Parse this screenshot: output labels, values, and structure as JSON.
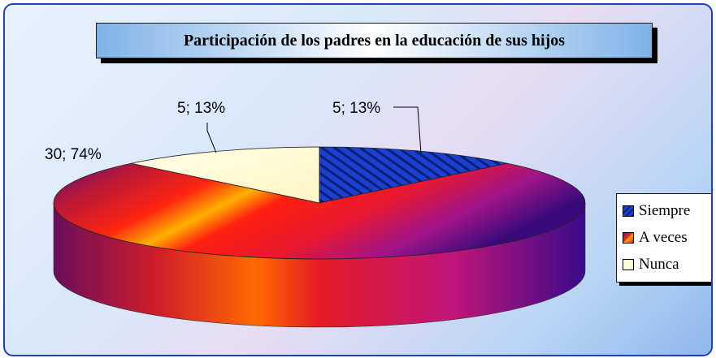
{
  "chart_data": {
    "type": "pie",
    "title": "Participación de los padres en la educación de  sus hijos",
    "categories": [
      "Siempre",
      "A veces",
      "Nunca"
    ],
    "values": [
      5,
      30,
      5
    ],
    "percents": [
      13,
      74,
      13
    ],
    "data_labels": [
      "5; 13%",
      "30; 74%",
      "5; 13%"
    ],
    "colors": [
      "#1f3fbf",
      "#e8202a",
      "#fffbd9"
    ],
    "legend_position": "right"
  }
}
